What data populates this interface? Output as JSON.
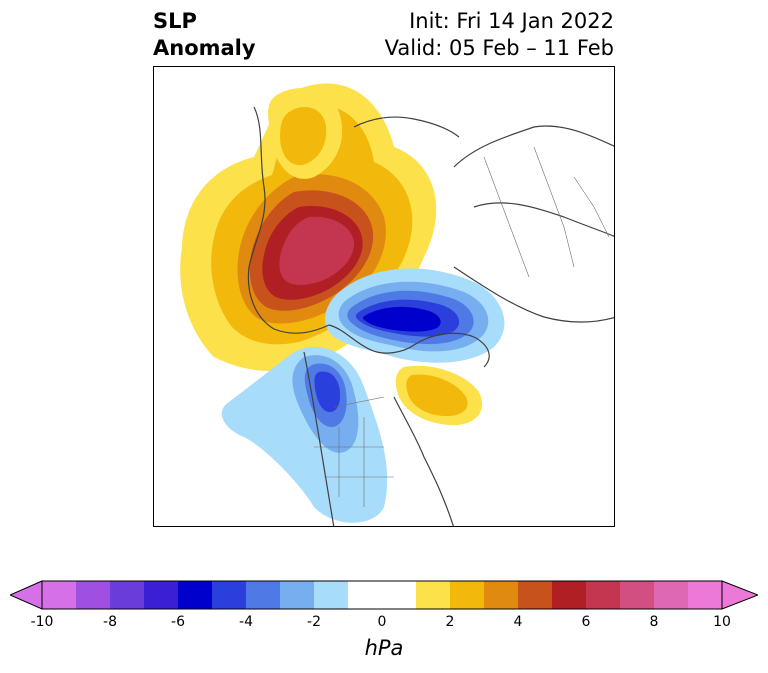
{
  "title": {
    "left_line1": "SLP",
    "left_line2": "Anomaly",
    "right_line1": "Init: Fri 14 Jan 2022",
    "right_line2": "Valid: 05 Feb – 11 Feb"
  },
  "map": {
    "projection": "north-polar-stereographic",
    "features": [
      {
        "name": "positive-anomaly-siberia",
        "level_hPa": 7
      },
      {
        "name": "negative-anomaly-arctic",
        "level_hPa": -6
      },
      {
        "name": "negative-anomaly-north-america",
        "level_hPa": -4
      },
      {
        "name": "positive-anomaly-north-atlantic",
        "level_hPa": 3
      }
    ]
  },
  "colorbar": {
    "unit": "hPa",
    "ticks": [
      "-10",
      "-8",
      "-6",
      "-4",
      "-2",
      "0",
      "2",
      "4",
      "6",
      "8",
      "10"
    ],
    "colors": [
      "#d670e8",
      "#a050e0",
      "#6a3ddb",
      "#3a1fd4",
      "#0000cc",
      "#2a3fdc",
      "#4f7ae6",
      "#76aef0",
      "#a8dcfb",
      "#ffffff",
      "#ffffff",
      "#fde14a",
      "#f3b80c",
      "#e08a0f",
      "#c8521c",
      "#b01f23",
      "#c43650",
      "#d24f82",
      "#df68b5",
      "#ec78d8"
    ],
    "extend_low_color": "#d670e8",
    "extend_high_color": "#ec78d8"
  }
}
